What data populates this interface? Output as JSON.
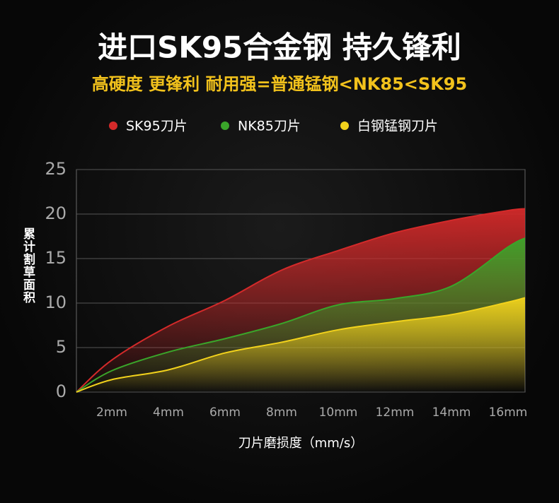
{
  "chart_data": {
    "type": "area",
    "title": "进口SK95合金钢 持久锋利",
    "subtitle": "高硬度 更锋利 耐用强=普通锰钢<NK85<SK95",
    "y_label": "累计割草面积",
    "x_label": "刀片磨损度（mm/s）",
    "x": [
      0.75,
      2,
      4,
      6,
      8,
      10,
      12,
      14,
      16,
      16.6
    ],
    "series": [
      {
        "name": "SK95刀片",
        "color": "#d42a2a",
        "values": [
          0,
          3.6,
          7.4,
          10.3,
          13.7,
          15.9,
          17.9,
          19.3,
          20.4,
          20.6
        ]
      },
      {
        "name": "NK85刀片",
        "color": "#3aa52a",
        "values": [
          0,
          2.4,
          4.5,
          6,
          7.7,
          9.8,
          10.5,
          11.9,
          16.3,
          17.3
        ]
      },
      {
        "name": "白钢锰钢刀片",
        "color": "#f2d21c",
        "values": [
          0,
          1.4,
          2.5,
          4.4,
          5.6,
          7,
          7.9,
          8.7,
          10.1,
          10.6
        ]
      }
    ],
    "xlim": [
      0.75,
      16.6
    ],
    "xticks": [
      {
        "value": 2,
        "label": "2mm"
      },
      {
        "value": 4,
        "label": "4mm"
      },
      {
        "value": 6,
        "label": "6mm"
      },
      {
        "value": 8,
        "label": "8mm"
      },
      {
        "value": 10,
        "label": "10mm"
      },
      {
        "value": 12,
        "label": "12mm"
      },
      {
        "value": 14,
        "label": "14mm"
      },
      {
        "value": 16,
        "label": "16mm"
      }
    ],
    "ylim": [
      0,
      25
    ],
    "yticks": [
      0,
      5,
      10,
      15,
      20,
      25
    ],
    "grid": true
  }
}
